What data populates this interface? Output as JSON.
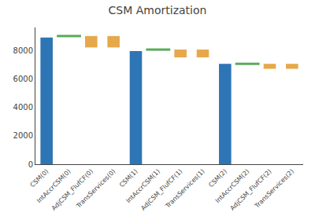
{
  "chart_data": {
    "type": "bar",
    "title": "CSM Amortization",
    "categories": [
      "CSM(0)",
      "IntAccrCSM(0)",
      "AdjCSM_FlufCF(0)",
      "TransServices(0)",
      "CSM(1)",
      "IntAccrCSM(1)",
      "AdjCSM_FlufCF(1)",
      "TransServices(1)",
      "CSM(2)",
      "IntAccrCSM(2)",
      "AdjCSM_FlufCF(2)",
      "TransServices(2)"
    ],
    "series": [
      {
        "type": "bar",
        "color": "#2e75b6",
        "values": [
          8900,
          null,
          null,
          null,
          7950,
          null,
          null,
          null,
          7050,
          null,
          null,
          null
        ],
        "bases": [
          0,
          null,
          null,
          null,
          0,
          null,
          null,
          null,
          0,
          null,
          null,
          null
        ]
      },
      {
        "type": "scatter",
        "marker": "line",
        "color": "#5aab5a",
        "values": [
          null,
          9000,
          null,
          null,
          null,
          8050,
          null,
          null,
          null,
          7050,
          null,
          null
        ]
      },
      {
        "type": "bar",
        "color": "#e6a84b",
        "values": [
          null,
          null,
          800,
          800,
          null,
          null,
          550,
          550,
          null,
          null,
          350,
          350
        ],
        "bases": [
          null,
          null,
          8200,
          8200,
          null,
          null,
          7500,
          7500,
          null,
          null,
          6700,
          6700
        ]
      }
    ],
    "ylim": [
      0,
      9600
    ],
    "yticks": [
      0,
      2000,
      4000,
      6000,
      8000
    ],
    "grid": false
  }
}
